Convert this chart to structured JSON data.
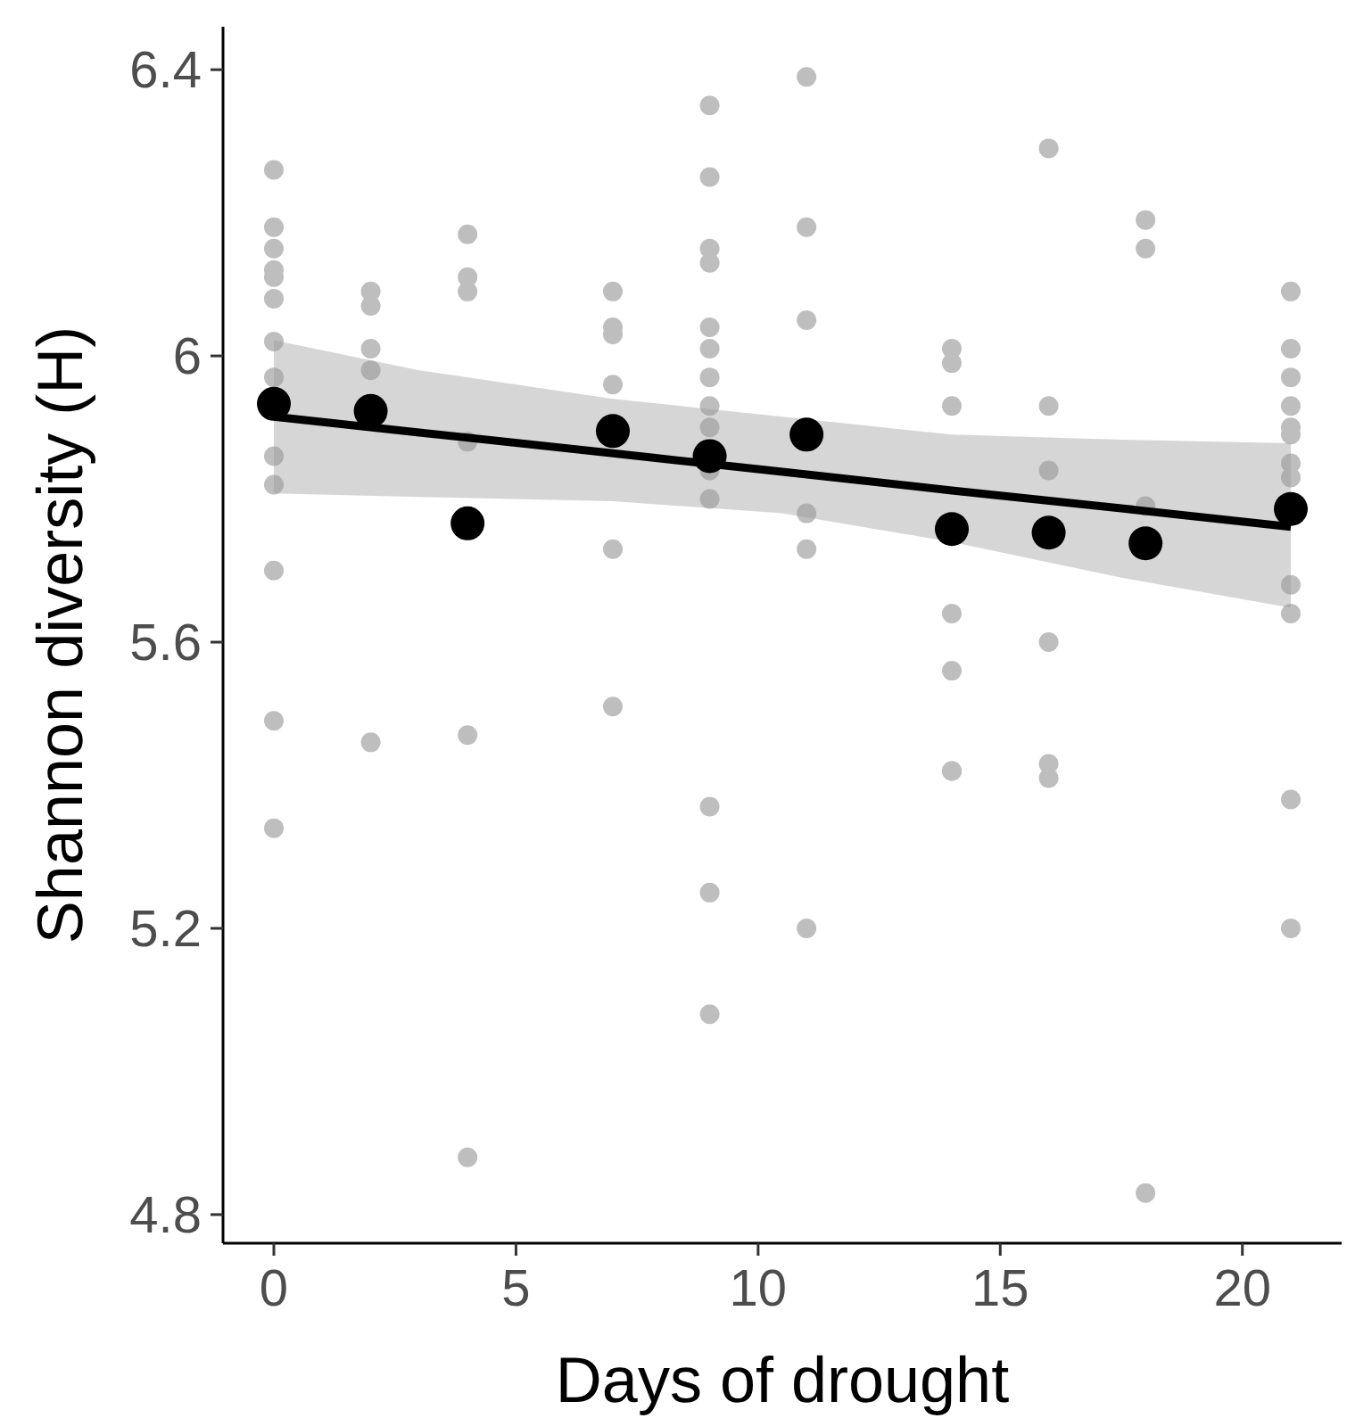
{
  "chart_data": {
    "type": "scatter",
    "xlabel": "Days of drought",
    "ylabel": "Shannon diversity (H)",
    "xlim": [
      -1.05,
      22.05
    ],
    "ylim": [
      4.76,
      6.46
    ],
    "xticks": [
      0,
      5,
      10,
      15,
      20
    ],
    "yticks": [
      4.8,
      5.2,
      5.6,
      6.0,
      6.4
    ],
    "grid": false,
    "marker": "circle",
    "series": [
      {
        "color": "#bebebe",
        "x": [
          0,
          0,
          0,
          0,
          0,
          0,
          0,
          0,
          0,
          0,
          0,
          0,
          0,
          2,
          2,
          2,
          2,
          2,
          4,
          4,
          4,
          4,
          4,
          4,
          7,
          7,
          7,
          7,
          7,
          7,
          9,
          9,
          9,
          9,
          9,
          9,
          9,
          9,
          9,
          9,
          9,
          9,
          9,
          9,
          11,
          11,
          11,
          11,
          11,
          11,
          14,
          14,
          14,
          14,
          14,
          14,
          14,
          16,
          16,
          16,
          16,
          16,
          16,
          18,
          18,
          18,
          18,
          21,
          21,
          21,
          21,
          21,
          21,
          21,
          21,
          21,
          21,
          21,
          21
        ],
        "values": [
          6.26,
          6.18,
          6.15,
          6.12,
          6.11,
          6.08,
          6.02,
          5.97,
          5.86,
          5.82,
          5.7,
          5.49,
          5.34,
          6.09,
          6.07,
          6.01,
          5.98,
          5.46,
          6.17,
          6.11,
          6.09,
          5.88,
          5.47,
          4.88,
          6.09,
          6.04,
          6.03,
          5.96,
          5.73,
          5.51,
          6.35,
          6.25,
          6.15,
          6.13,
          6.04,
          6.01,
          5.97,
          5.93,
          5.9,
          5.84,
          5.8,
          5.37,
          5.25,
          5.08,
          6.39,
          6.18,
          6.05,
          5.78,
          5.73,
          5.2,
          6.01,
          5.99,
          5.93,
          5.64,
          5.56,
          5.42,
          5.42,
          6.29,
          5.93,
          5.84,
          5.6,
          5.43,
          5.41,
          6.19,
          6.15,
          5.79,
          4.83,
          6.09,
          6.01,
          5.97,
          5.93,
          5.9,
          5.89,
          5.85,
          5.83,
          5.68,
          5.64,
          5.38,
          5.2
        ]
      },
      {
        "type": "line",
        "marker": "none",
        "color": "#000000",
        "x": [
          0,
          3,
          7,
          10.5,
          14,
          17.5,
          21
        ],
        "values": [
          5.915,
          5.893,
          5.864,
          5.838,
          5.812,
          5.787,
          5.761
        ],
        "lower": [
          5.808,
          5.803,
          5.797,
          5.78,
          5.74,
          5.69,
          5.648
        ],
        "upper": [
          6.022,
          5.98,
          5.94,
          5.915,
          5.89,
          5.883,
          5.878
        ]
      },
      {
        "color": "#000000",
        "x": [
          0,
          2,
          4,
          7,
          9,
          11,
          14,
          16,
          18,
          21
        ],
        "values": [
          5.933,
          5.923,
          5.766,
          5.895,
          5.86,
          5.89,
          5.758,
          5.753,
          5.738,
          5.786
        ]
      }
    ]
  }
}
